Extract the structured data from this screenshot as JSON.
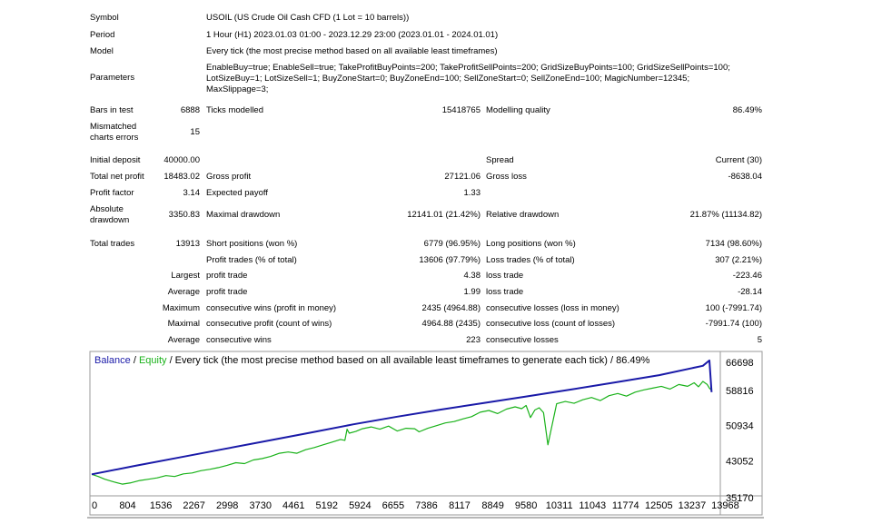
{
  "report": {
    "symbol": {
      "label": "Symbol",
      "value": "USOIL (US Crude Oil Cash CFD (1 Lot = 10 barrels))"
    },
    "period": {
      "label": "Period",
      "value": "1 Hour (H1) 2023.01.03 01:00 - 2023.12.29 23:00 (2023.01.01 - 2024.01.01)"
    },
    "model": {
      "label": "Model",
      "value": "Every tick (the most precise method based on all available least timeframes)"
    },
    "parameters": {
      "label": "Parameters",
      "lines": [
        "EnableBuy=true; EnableSell=true; TakeProfitBuyPoints=200; TakeProfitSellPoints=200; GridSizeBuyPoints=100; GridSizeSellPoints=100;",
        "LotSizeBuy=1; LotSizeSell=1; BuyZoneStart=0; BuyZoneEnd=100; SellZoneStart=0; SellZoneEnd=100; MagicNumber=12345;",
        "MaxSlippage=3;"
      ]
    },
    "bars": {
      "label": "Bars in test",
      "value": "6888"
    },
    "ticks": {
      "label": "Ticks modelled",
      "value": "15418765"
    },
    "quality": {
      "label": "Modelling quality",
      "value": "86.49%"
    },
    "mismatched": {
      "label_lines": [
        "Mismatched",
        "charts errors"
      ],
      "value": "15"
    },
    "initial_deposit": {
      "label": "Initial deposit",
      "value": "40000.00"
    },
    "spread": {
      "label": "Spread",
      "value": "Current (30)"
    },
    "net_profit": {
      "label": "Total net profit",
      "value": "18483.02"
    },
    "gross_profit": {
      "label": "Gross profit",
      "value": "27121.06"
    },
    "gross_loss": {
      "label": "Gross loss",
      "value": "-8638.04"
    },
    "profit_factor": {
      "label": "Profit factor",
      "value": "3.14"
    },
    "expected_payoff": {
      "label": "Expected payoff",
      "value": "1.33"
    },
    "abs_drawdown": {
      "label_lines": [
        "Absolute",
        "drawdown"
      ],
      "value": "3350.83"
    },
    "max_drawdown": {
      "label": "Maximal drawdown",
      "value": "12141.01 (21.42%)"
    },
    "rel_drawdown": {
      "label": "Relative drawdown",
      "value": "21.87% (11134.82)"
    },
    "total_trades": {
      "label": "Total trades",
      "value": "13913"
    },
    "short_positions": {
      "label": "Short positions (won %)",
      "value": "6779 (96.95%)"
    },
    "long_positions": {
      "label": "Long positions (won %)",
      "value": "7134 (98.60%)"
    },
    "profit_trades": {
      "label": "Profit trades (% of total)",
      "value": "13606 (97.79%)"
    },
    "loss_trades": {
      "label": "Loss trades (% of total)",
      "value": "307 (2.21%)"
    },
    "largest": {
      "prefix": "Largest",
      "profit_label": "profit trade",
      "profit_value": "4.38",
      "loss_label": "loss trade",
      "loss_value": "-223.46"
    },
    "average": {
      "prefix": "Average",
      "profit_label": "profit trade",
      "profit_value": "1.99",
      "loss_label": "loss trade",
      "loss_value": "-28.14"
    },
    "maximum": {
      "prefix": "Maximum",
      "wins_label": "consecutive wins (profit in money)",
      "wins_value": "2435 (4964.88)",
      "losses_label": "consecutive losses (loss in money)",
      "losses_value": "100 (-7991.74)"
    },
    "maximal": {
      "prefix": "Maximal",
      "profit_label": "consecutive profit (count of wins)",
      "profit_value": "4964.88 (2435)",
      "loss_label": "consecutive loss (count of losses)",
      "loss_value": "-7991.74 (100)"
    },
    "average_consec": {
      "prefix": "Average",
      "wins_label": "consecutive wins",
      "wins_value": "223",
      "losses_label": "consecutive losses",
      "losses_value": "5"
    }
  },
  "chart_data": {
    "type": "line",
    "legend": {
      "balance": "Balance",
      "sep": " / ",
      "equity": "Equity",
      "rest": " / Every tick (the most precise method based on all available least timeframes to generate each tick) / 86.49%"
    },
    "x_ticks": [
      "0",
      "804",
      "1536",
      "2267",
      "2998",
      "3730",
      "4461",
      "5192",
      "5924",
      "6655",
      "7386",
      "8117",
      "8849",
      "9580",
      "10311",
      "11043",
      "11774",
      "12505",
      "13237",
      "13968"
    ],
    "y_ticks": [
      "66698",
      "58816",
      "50934",
      "43052",
      "35170"
    ],
    "xlim": [
      0,
      14400
    ],
    "ylim": [
      35170,
      66698
    ],
    "colors": {
      "balance": "#1a1aa8",
      "equity": "#19b219",
      "frame": "#9a9a9a"
    },
    "series": [
      {
        "name": "Balance",
        "x": [
          0,
          1000,
          2000,
          3000,
          4000,
          5000,
          6000,
          7000,
          8000,
          9000,
          10000,
          11000,
          12000,
          13000,
          14000,
          14150,
          14200
        ],
        "values": [
          40000,
          41900,
          43750,
          45600,
          47450,
          49300,
          51200,
          52900,
          54500,
          56000,
          57500,
          59000,
          60600,
          62200,
          64300,
          65500,
          58400
        ]
      },
      {
        "name": "Equity",
        "x": [
          0,
          150,
          300,
          500,
          700,
          900,
          1100,
          1300,
          1500,
          1700,
          1900,
          2100,
          2300,
          2500,
          2700,
          2900,
          3100,
          3300,
          3500,
          3700,
          3900,
          4100,
          4300,
          4500,
          4700,
          4900,
          5100,
          5300,
          5500,
          5700,
          5800,
          5850,
          5900,
          6050,
          6200,
          6400,
          6600,
          6800,
          7000,
          7200,
          7400,
          7500,
          7700,
          7900,
          8100,
          8300,
          8500,
          8700,
          8900,
          9100,
          9300,
          9500,
          9700,
          9850,
          9950,
          10050,
          10150,
          10250,
          10350,
          10450,
          10650,
          10850,
          11050,
          11250,
          11450,
          11650,
          11850,
          12050,
          12250,
          12450,
          12650,
          12850,
          13050,
          13250,
          13450,
          13650,
          13800,
          13900,
          14000,
          14100,
          14150,
          14200
        ],
        "values": [
          40000,
          39500,
          38900,
          38300,
          37800,
          38100,
          38600,
          38900,
          39200,
          39700,
          39500,
          40100,
          40300,
          40800,
          41100,
          41500,
          42000,
          42600,
          42400,
          43200,
          43500,
          44000,
          44700,
          45000,
          44700,
          45500,
          46000,
          46600,
          47200,
          47800,
          47600,
          50100,
          49200,
          49600,
          50200,
          50600,
          50100,
          50800,
          49700,
          50300,
          50200,
          49500,
          50300,
          50900,
          51500,
          51800,
          52400,
          52900,
          53900,
          54300,
          53600,
          54600,
          55100,
          54700,
          55400,
          52700,
          54400,
          54900,
          53800,
          46600,
          55800,
          56300,
          55900,
          56700,
          57200,
          56500,
          57600,
          58100,
          57500,
          58400,
          58900,
          59300,
          59700,
          59100,
          60100,
          59700,
          60500,
          59600,
          60800,
          60100,
          59300,
          58800
        ]
      }
    ]
  }
}
